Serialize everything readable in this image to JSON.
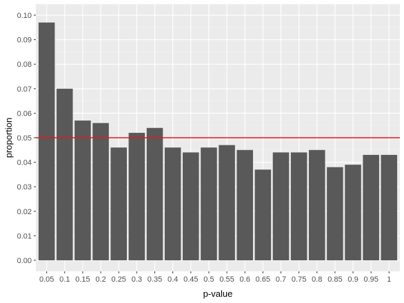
{
  "chart_data": {
    "type": "bar",
    "title": "",
    "xlabel": "p-value",
    "ylabel": "proportion",
    "categories": [
      "0.05",
      "0.1",
      "0.15",
      "0.2",
      "0.25",
      "0.3",
      "0.35",
      "0.4",
      "0.45",
      "0.5",
      "0.55",
      "0.6",
      "0.65",
      "0.7",
      "0.75",
      "0.8",
      "0.85",
      "0.9",
      "0.95",
      "1"
    ],
    "values": [
      0.097,
      0.07,
      0.057,
      0.056,
      0.046,
      0.052,
      0.054,
      0.046,
      0.044,
      0.046,
      0.047,
      0.045,
      0.037,
      0.044,
      0.044,
      0.045,
      0.038,
      0.039,
      0.043,
      0.043
    ],
    "ylim": [
      0,
      0.1
    ],
    "yticks": [
      "0.00",
      "0.01",
      "0.02",
      "0.03",
      "0.04",
      "0.05",
      "0.06",
      "0.07",
      "0.08",
      "0.09",
      "0.10"
    ],
    "reference_line": {
      "y": 0.05,
      "color": "#e41a1c"
    },
    "grid": true,
    "colors": {
      "bar": "#595959",
      "panel_background": "#ebebeb",
      "grid_major": "#ffffff",
      "grid_minor": "#f2f2f2"
    }
  }
}
